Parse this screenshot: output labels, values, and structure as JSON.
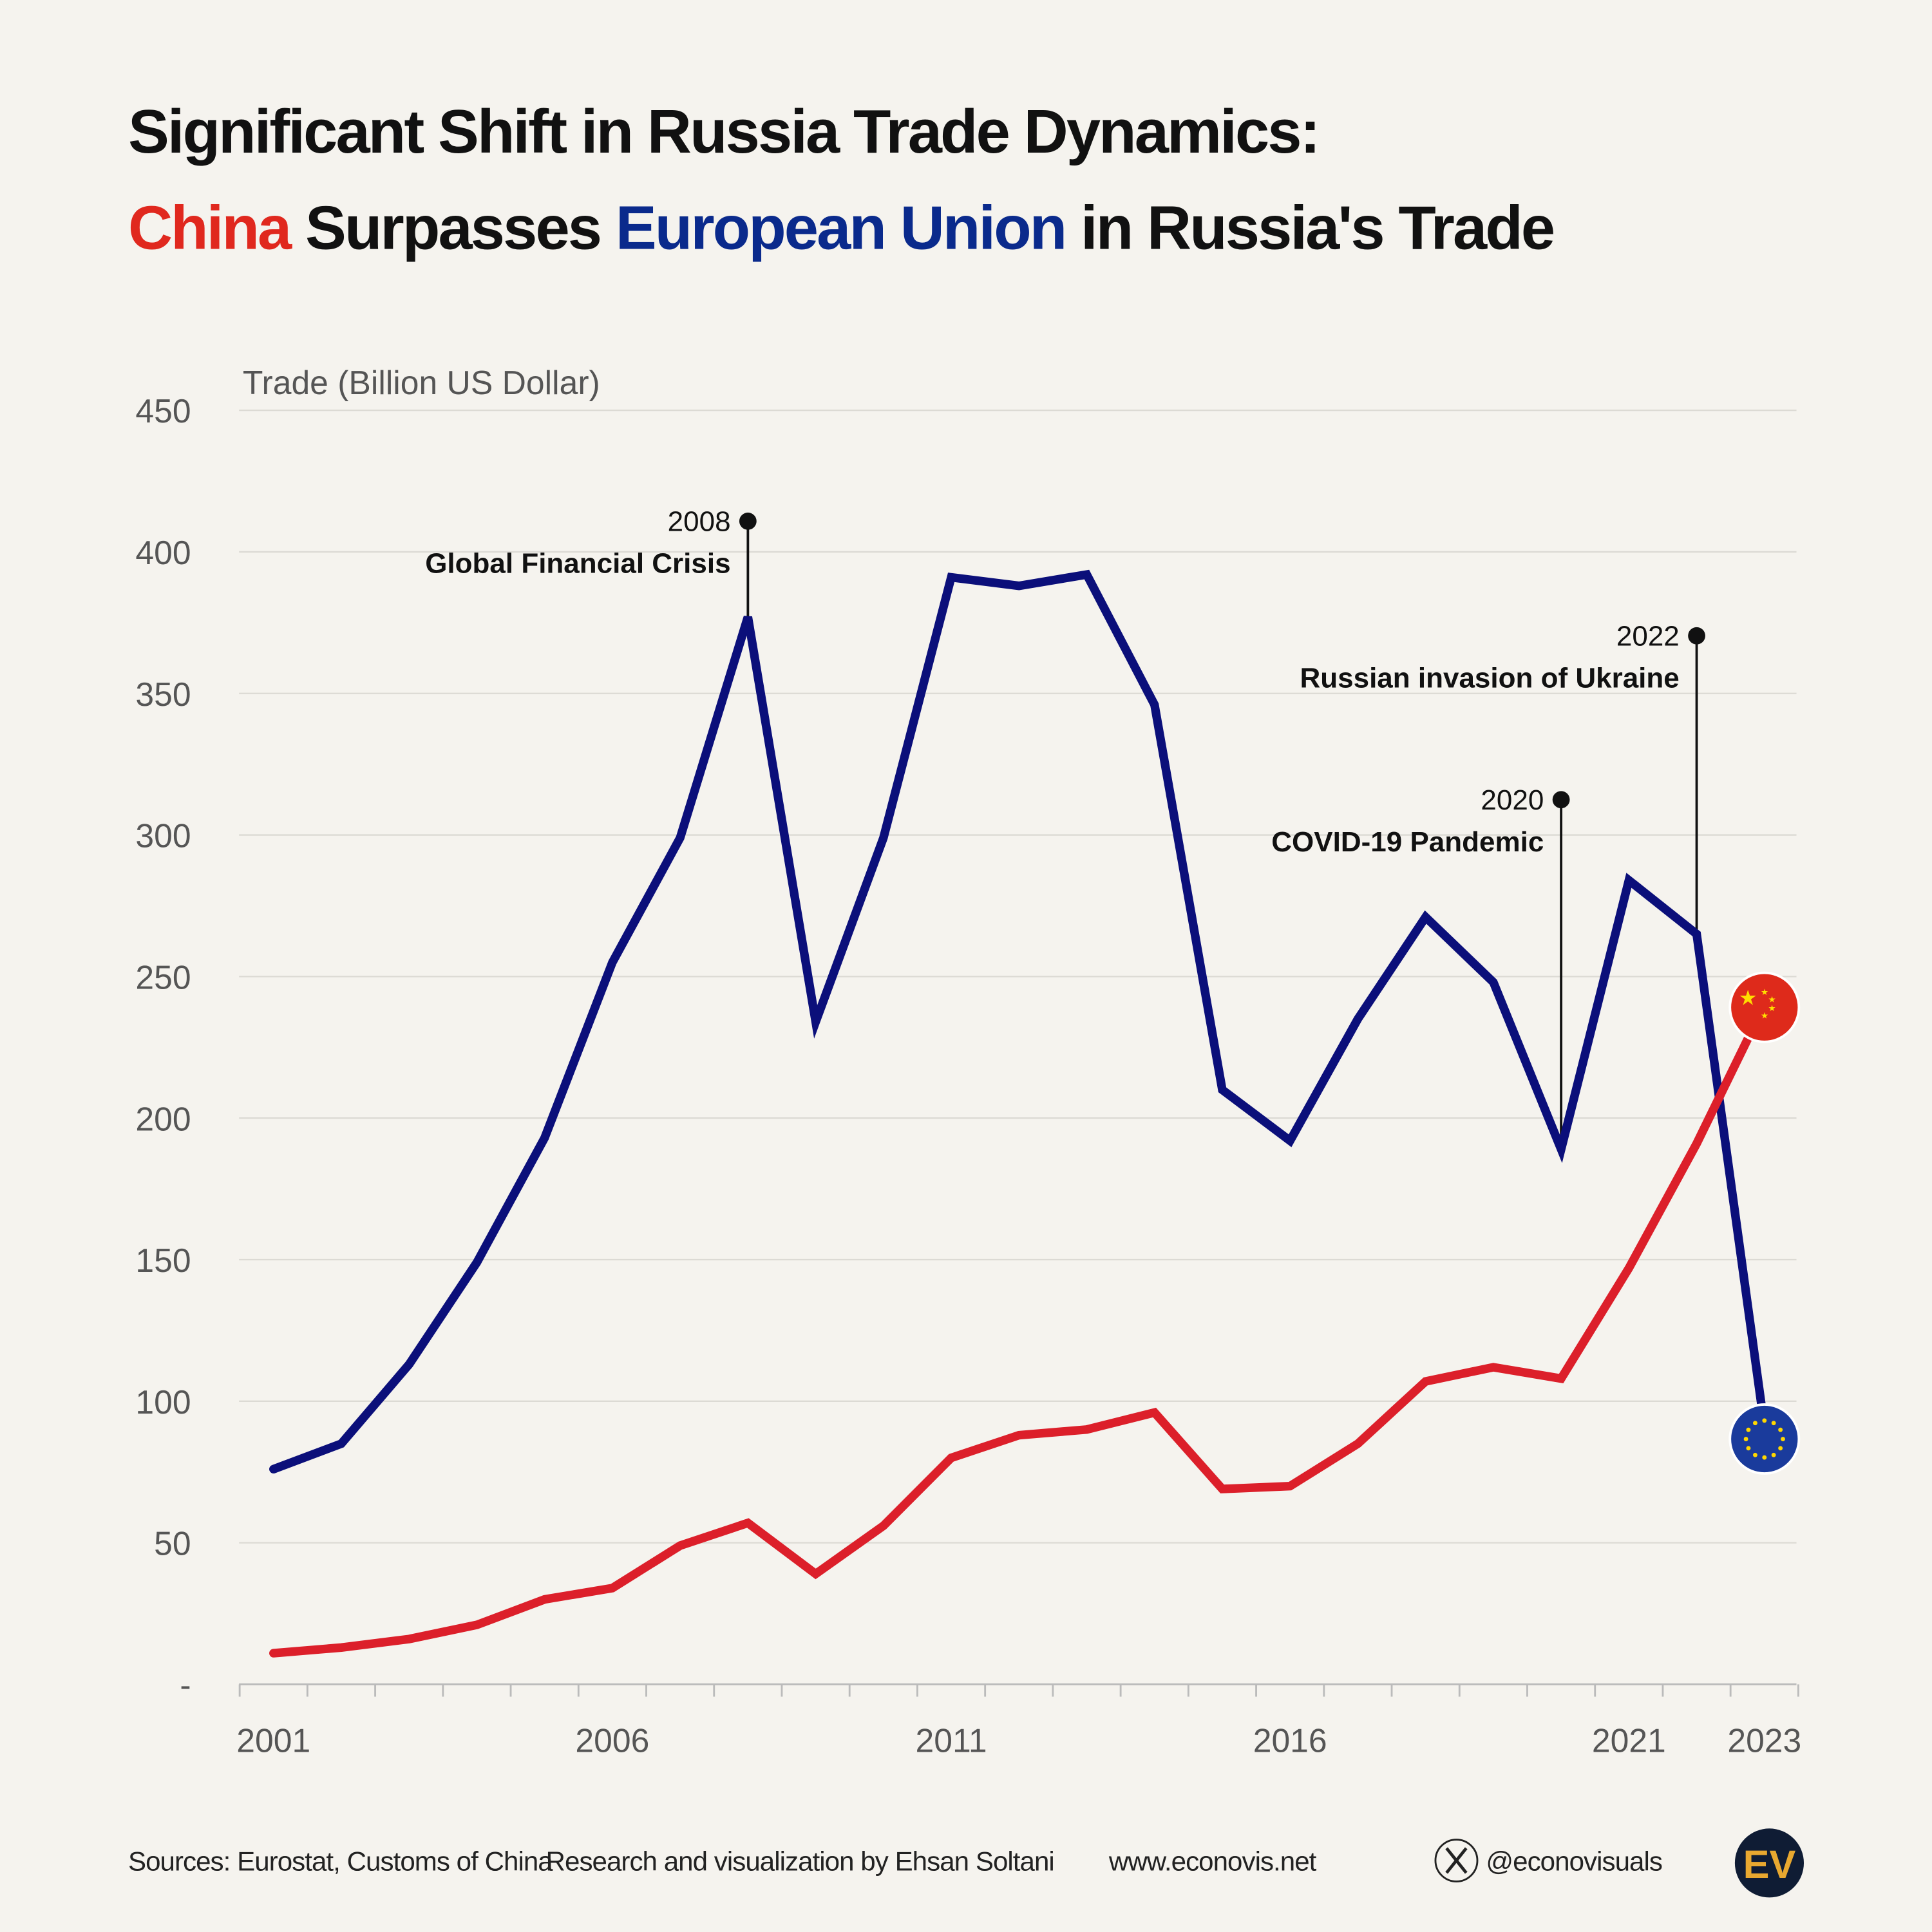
{
  "title": {
    "line1": "Significant Shift in Russia Trade Dynamics:",
    "line2_parts": [
      {
        "text": "China",
        "color": "#e0281e"
      },
      {
        "text": " Surpasses ",
        "color": "#111111"
      },
      {
        "text": "European Union",
        "color": "#0a2a8c"
      },
      {
        "text": " in Russia's Trade",
        "color": "#111111"
      }
    ]
  },
  "chart_data": {
    "type": "line",
    "ylabel": "Trade (Billion US Dollar)",
    "ylim": [
      0,
      450
    ],
    "yticks": [
      0,
      50,
      100,
      150,
      200,
      250,
      300,
      350,
      400,
      450
    ],
    "ytick_labels": [
      "-",
      "50",
      "100",
      "150",
      "200",
      "250",
      "300",
      "350",
      "400",
      "450"
    ],
    "xlim": [
      2001,
      2023
    ],
    "xtick_labels": [
      "2001",
      "2006",
      "2011",
      "2016",
      "2021",
      "2023"
    ],
    "grid": true,
    "x": [
      2001,
      2002,
      2003,
      2004,
      2005,
      2006,
      2007,
      2008,
      2009,
      2010,
      2011,
      2012,
      2013,
      2014,
      2015,
      2016,
      2017,
      2018,
      2019,
      2020,
      2021,
      2022,
      2023
    ],
    "series": [
      {
        "key": "eu",
        "color": "#0b0f7a",
        "marker": "eu-flag",
        "values": [
          76,
          85,
          113,
          149,
          193,
          255,
          299,
          377,
          234,
          299,
          391,
          388,
          392,
          346,
          210,
          192,
          235,
          271,
          248,
          189,
          284,
          265,
          91
        ]
      },
      {
        "key": "china",
        "color": "#dc1f2a",
        "marker": "china-flag",
        "values": [
          11,
          13,
          16,
          21,
          30,
          34,
          49,
          57,
          39,
          56,
          80,
          88,
          90,
          96,
          69,
          70,
          85,
          107,
          112,
          108,
          147,
          191,
          240
        ]
      }
    ],
    "annotations": [
      {
        "year": "2008",
        "label": "Global Financial Crisis",
        "x": 2008
      },
      {
        "year": "2020",
        "label": "COVID-19 Pandemic",
        "x": 2020
      },
      {
        "year": "2022",
        "label": "Russian invasion of Ukraine",
        "x": 2022
      }
    ]
  },
  "footer": {
    "sources": "Sources: Eurostat, Customs of China",
    "credit": "Research and visualization by Ehsan Soltani",
    "website": "www.econovis.net",
    "handle": "@econovisuals",
    "logo": "EV"
  }
}
